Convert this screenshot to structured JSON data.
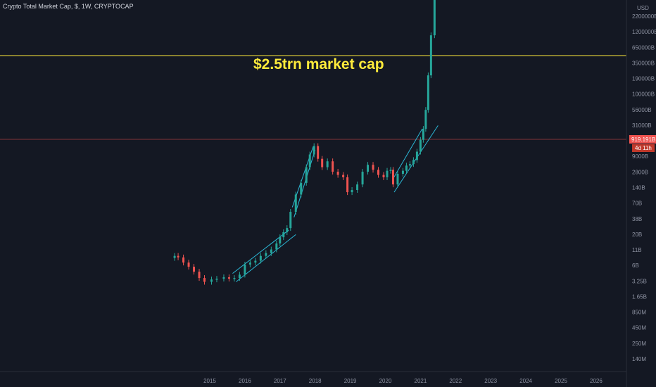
{
  "chart_title": "Crypto Total Market Cap, $, 1W, CRYPTOCAP",
  "annotation": "$2.5trn market cap",
  "axis_unit": "USD",
  "colors": {
    "background": "#141823",
    "up": "#26a69a",
    "down": "#ef5350",
    "channel": "#2bb7d6",
    "resistance": "#ffeb3b",
    "price_line": "#ef5350",
    "axis_text": "#8f94a3"
  },
  "chart_data": {
    "type": "candlestick",
    "title": "Crypto Total Market Cap, $, 1W, CRYPTOCAP",
    "y_scale": "log",
    "y_tick_labels": [
      "2200000B",
      "1200000B",
      "650000B",
      "350000B",
      "190000B",
      "100000B",
      "56000B",
      "31000B",
      "17000B",
      "9000B",
      "2800B",
      "140B",
      "70B",
      "38B",
      "20B",
      "11B",
      "6B",
      "3.25B",
      "1.65B",
      "850M",
      "450M",
      "250M",
      "140M"
    ],
    "x_tick_labels": [
      "2015",
      "2016",
      "2017",
      "2018",
      "2019",
      "2020",
      "2021",
      "2022",
      "2023",
      "2024",
      "2025",
      "2026"
    ],
    "price_badge": "919.191B",
    "countdown_badge": "4d 11h",
    "series": [
      {
        "points": [
          {
            "date": "2014.00",
            "value": 8.5
          },
          {
            "date": "2014.10",
            "value": 8.0
          },
          {
            "date": "2014.25",
            "value": 6.5
          },
          {
            "date": "2014.40",
            "value": 5.5
          },
          {
            "date": "2014.55",
            "value": 4.5
          },
          {
            "date": "2014.70",
            "value": 3.5
          },
          {
            "date": "2014.85",
            "value": 3.0
          },
          {
            "date": "2015.05",
            "value": 3.3
          },
          {
            "date": "2015.20",
            "value": 3.4
          },
          {
            "date": "2015.40",
            "value": 3.6
          },
          {
            "date": "2015.55",
            "value": 3.4
          },
          {
            "date": "2015.70",
            "value": 3.5
          },
          {
            "date": "2015.85",
            "value": 4.0
          },
          {
            "date": "2016.00",
            "value": 6.0
          },
          {
            "date": "2016.15",
            "value": 6.5
          },
          {
            "date": "2016.30",
            "value": 7.0
          },
          {
            "date": "2016.45",
            "value": 8.5
          },
          {
            "date": "2016.60",
            "value": 9.5
          },
          {
            "date": "2016.75",
            "value": 11
          },
          {
            "date": "2016.90",
            "value": 14
          },
          {
            "date": "2017.00",
            "value": 18
          },
          {
            "date": "2017.10",
            "value": 22
          },
          {
            "date": "2017.20",
            "value": 26
          },
          {
            "date": "2017.30",
            "value": 50
          },
          {
            "date": "2017.45",
            "value": 100
          },
          {
            "date": "2017.60",
            "value": 160
          },
          {
            "date": "2017.75",
            "value": 300
          },
          {
            "date": "2017.85",
            "value": 500
          },
          {
            "date": "2017.97",
            "value": 700
          },
          {
            "date": "2018.08",
            "value": 420
          },
          {
            "date": "2018.20",
            "value": 300
          },
          {
            "date": "2018.35",
            "value": 380
          },
          {
            "date": "2018.50",
            "value": 250
          },
          {
            "date": "2018.65",
            "value": 220
          },
          {
            "date": "2018.80",
            "value": 200
          },
          {
            "date": "2018.92",
            "value": 110
          },
          {
            "date": "2019.05",
            "value": 120
          },
          {
            "date": "2019.20",
            "value": 150
          },
          {
            "date": "2019.35",
            "value": 250
          },
          {
            "date": "2019.50",
            "value": 330
          },
          {
            "date": "2019.65",
            "value": 270
          },
          {
            "date": "2019.80",
            "value": 220
          },
          {
            "date": "2019.95",
            "value": 200
          },
          {
            "date": "2020.05",
            "value": 260
          },
          {
            "date": "2020.15",
            "value": 270
          },
          {
            "date": "2020.22",
            "value": 150
          },
          {
            "date": "2020.35",
            "value": 230
          },
          {
            "date": "2020.50",
            "value": 260
          },
          {
            "date": "2020.60",
            "value": 320
          },
          {
            "date": "2020.70",
            "value": 340
          },
          {
            "date": "2020.80",
            "value": 400
          },
          {
            "date": "2020.90",
            "value": 560
          },
          {
            "date": "2021.00",
            "value": 900
          },
          {
            "date": "2021.08",
            "value": 1400
          },
          {
            "date": "2021.15",
            "value": 3000
          },
          {
            "date": "2021.22",
            "value": 12000
          },
          {
            "date": "2021.30",
            "value": 60000
          },
          {
            "date": "2021.40",
            "value": 250000
          }
        ]
      }
    ]
  }
}
